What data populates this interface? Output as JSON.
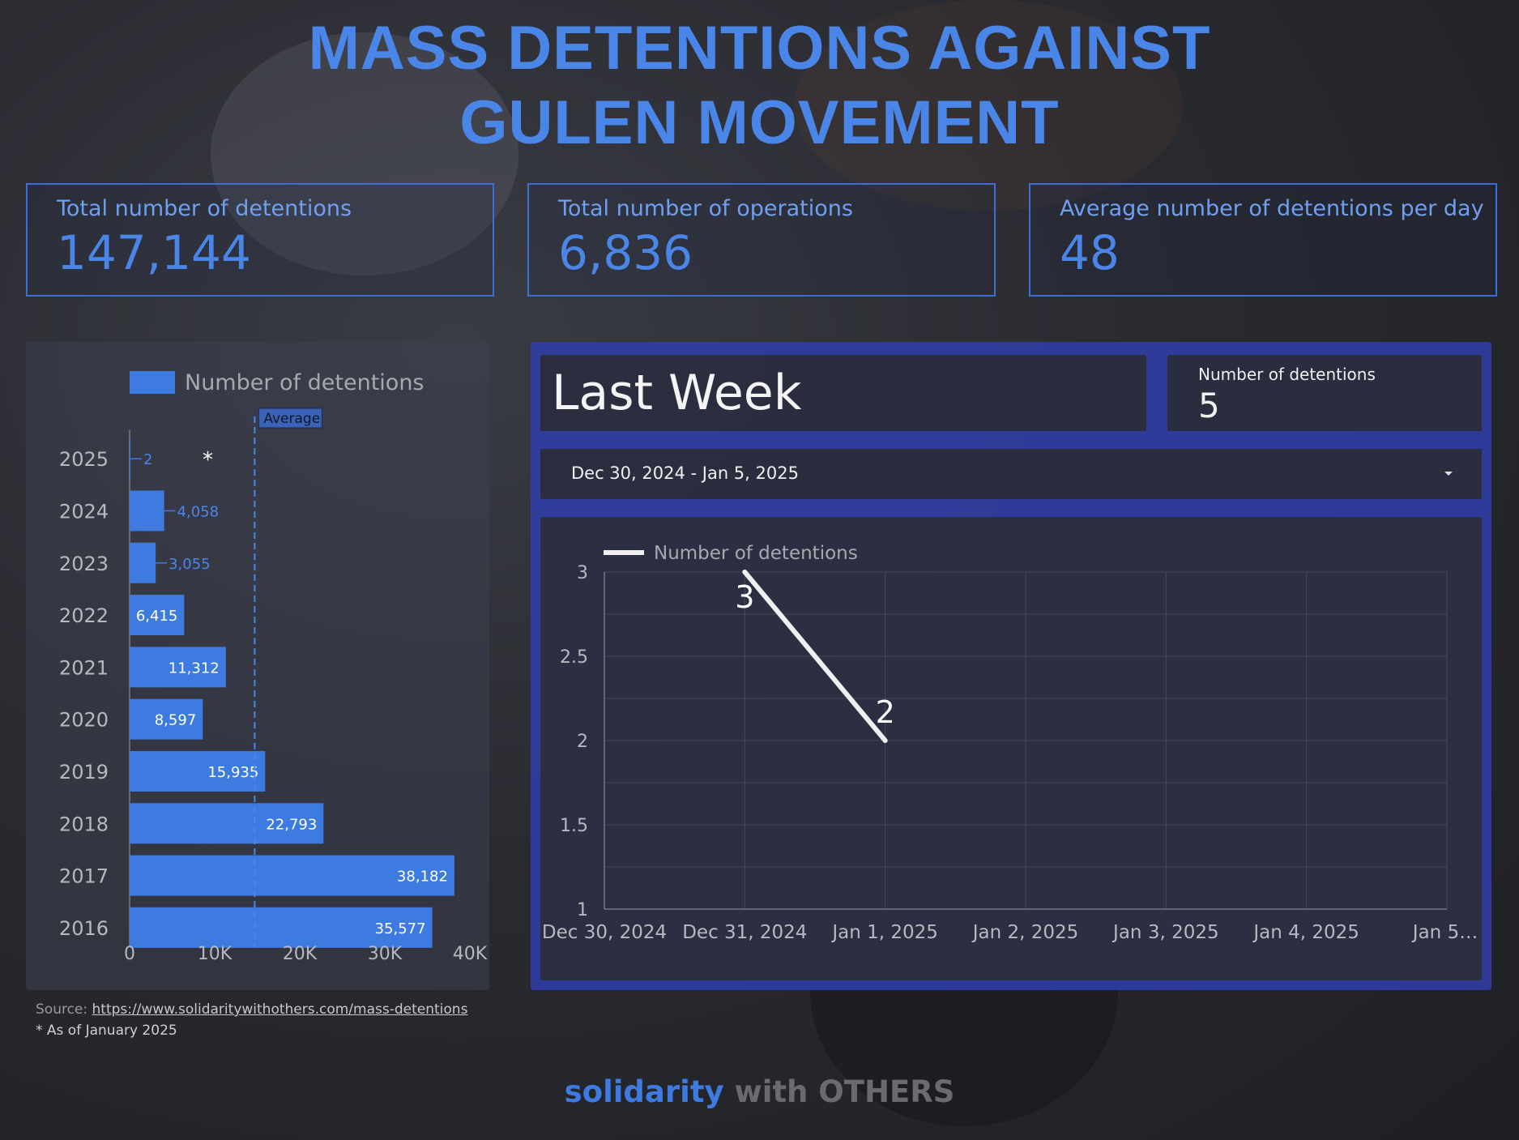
{
  "title": {
    "line1": "MASS DETENTIONS AGAINST",
    "line2": "GULEN MOVEMENT"
  },
  "kpis": [
    {
      "label": "Total number of detentions",
      "value": "147,144"
    },
    {
      "label": "Total number of operations",
      "value": "6,836"
    },
    {
      "label": "Average number of detentions per day",
      "value": "48"
    }
  ],
  "last_week": {
    "heading": "Last Week",
    "metric_label": "Number of detentions",
    "metric_value": "5",
    "date_range": "Dec 30, 2024 - Jan 5, 2025"
  },
  "footer": {
    "source_label": "Source: ",
    "source_link": "https://www.solidaritywithothers.com/mass-detentions",
    "note": "* As of January 2025",
    "brand_1": "solidarity",
    "brand_2": " with OTHERS"
  },
  "colors": {
    "accent": "#4a86e8",
    "panel": "#303ea9",
    "bar": "#3d7be0",
    "line": "#f0f0f0"
  },
  "chart_data": [
    {
      "type": "bar",
      "orientation": "horizontal",
      "legend": "Number of detentions",
      "legend_position": "top",
      "categories": [
        "2025",
        "2024",
        "2023",
        "2022",
        "2021",
        "2020",
        "2019",
        "2018",
        "2017",
        "2016"
      ],
      "values": [
        2,
        4058,
        3055,
        6415,
        11312,
        8597,
        15935,
        22793,
        38182,
        35577
      ],
      "value_labels": [
        "2",
        "4,058",
        "3,055",
        "6,415",
        "11,312",
        "8,597",
        "15,935",
        "22,793",
        "38,182",
        "35,577"
      ],
      "xlim": [
        0,
        40000
      ],
      "x_ticks": [
        "0",
        "10K",
        "20K",
        "30K",
        "40K"
      ],
      "reference_line": {
        "label": "Average",
        "value": 14700
      },
      "annotation": {
        "category": "2025",
        "text": "*"
      }
    },
    {
      "type": "line",
      "legend": "Number of detentions",
      "legend_position": "top-left",
      "x": [
        "Dec 30, 2024",
        "Dec 31, 2024",
        "Jan 1, 2025",
        "Jan 2, 2025",
        "Jan 3, 2025",
        "Jan 4, 2025",
        "Jan 5…"
      ],
      "points": [
        {
          "x": "Dec 31, 2024",
          "y": 3,
          "label": "3"
        },
        {
          "x": "Jan 1, 2025",
          "y": 2,
          "label": "2"
        }
      ],
      "ylim": [
        1,
        3
      ],
      "y_ticks": [
        "1",
        "1.5",
        "2",
        "2.5",
        "3"
      ],
      "grid": true
    }
  ]
}
